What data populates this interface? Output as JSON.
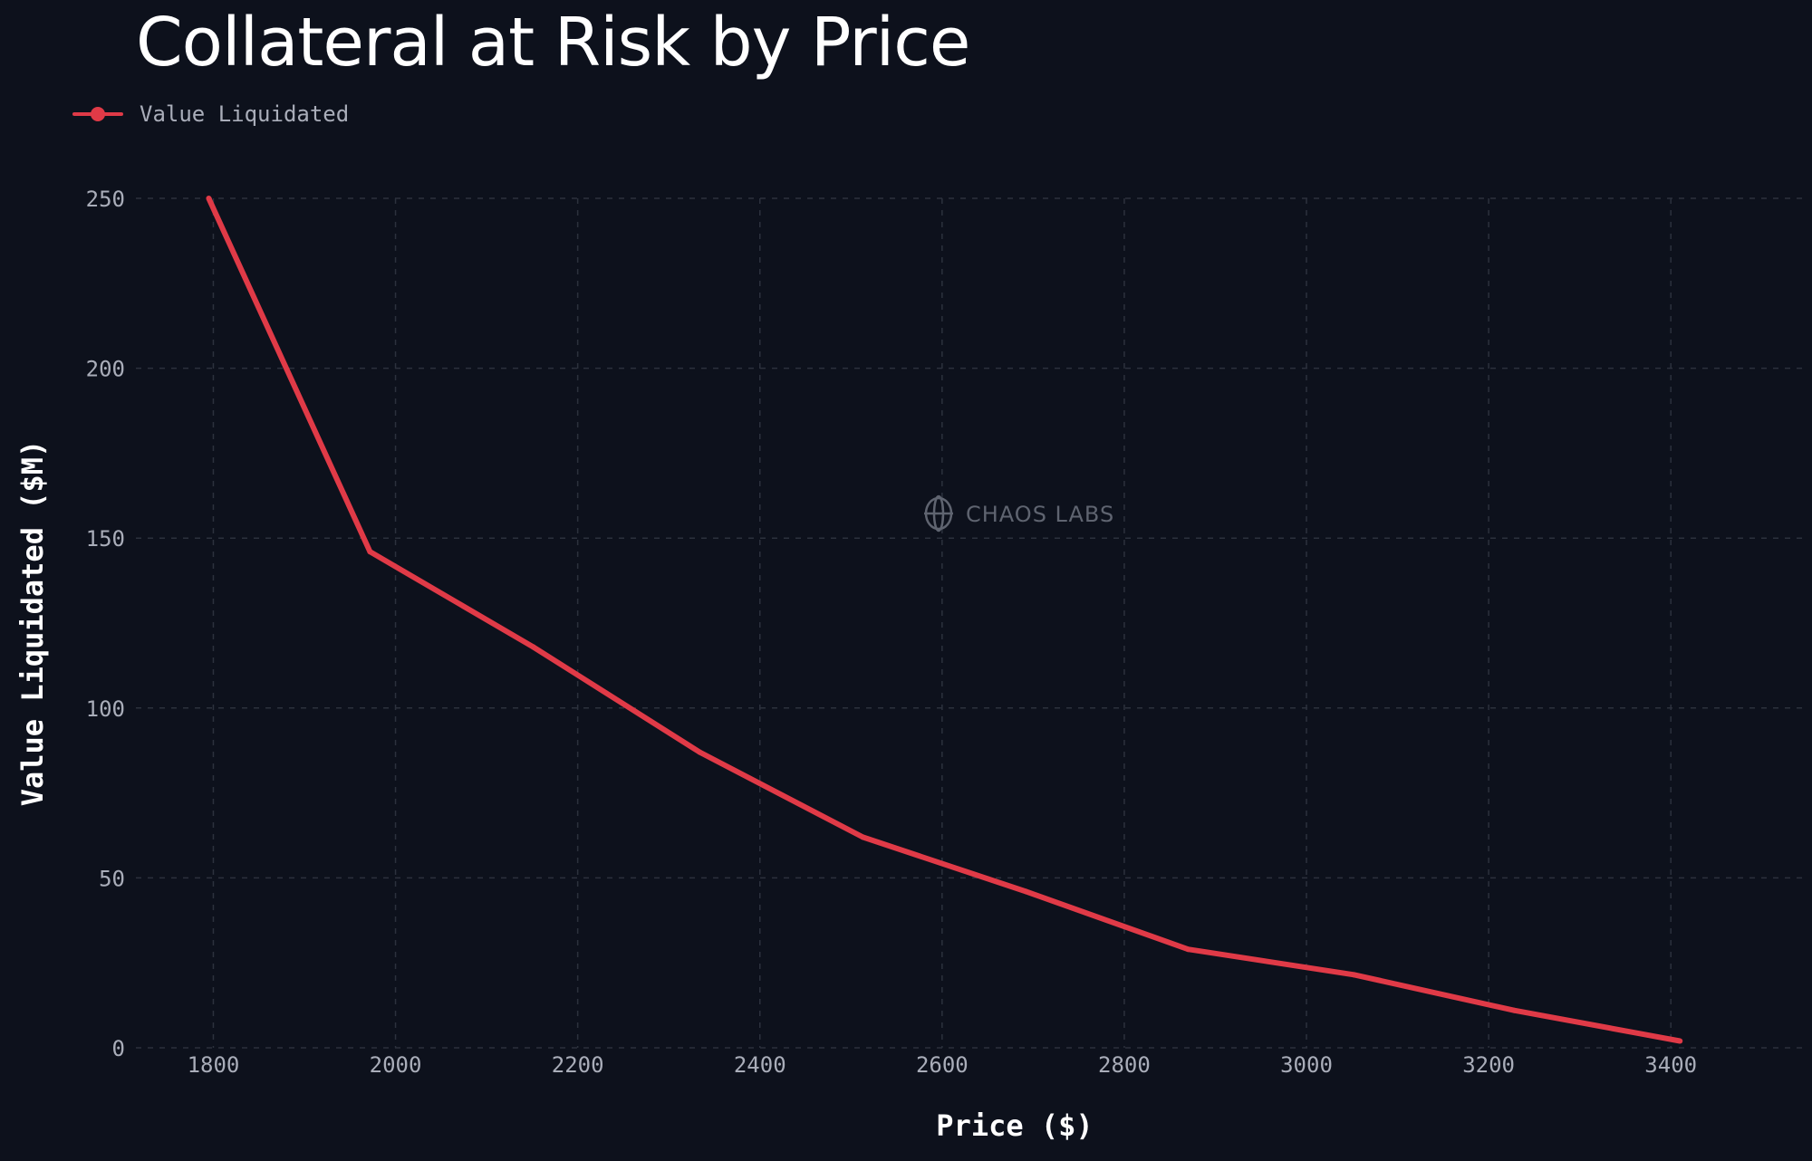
{
  "chart_data": {
    "type": "line",
    "title": "Collateral at Risk by Price",
    "xlabel": "Price ($)",
    "ylabel": "Value Liquidated ($M)",
    "xlim": [
      1715,
      3545
    ],
    "ylim": [
      0,
      250
    ],
    "x_ticks": [
      1800,
      2000,
      2200,
      2400,
      2600,
      2800,
      3000,
      3200,
      3400
    ],
    "y_ticks": [
      0,
      50,
      100,
      150,
      200,
      250
    ],
    "grid": true,
    "legend_position": "top-left",
    "series": [
      {
        "name": "Value Liquidated",
        "color": "#e03a47",
        "x": [
          1795,
          1972,
          2151,
          2334,
          2513,
          2692,
          2870,
          3052,
          3228,
          3410
        ],
        "y": [
          250,
          146,
          118,
          87,
          62,
          46,
          29,
          21.5,
          11,
          2
        ]
      }
    ]
  },
  "watermark": {
    "text": "CHAOS LABS",
    "icon": "chaos-labs-logo-icon"
  }
}
